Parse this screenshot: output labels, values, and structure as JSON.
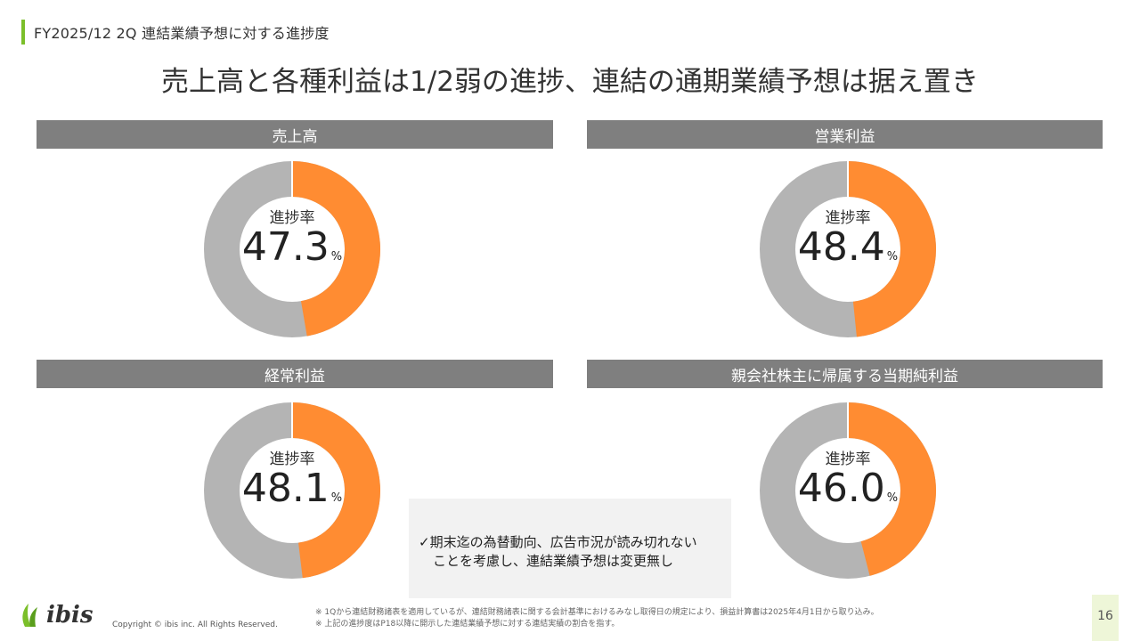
{
  "header": {
    "label": "FY2025/12 2Q 連結業績予想に対する進捗度"
  },
  "title": "売上高と各種利益は1/2弱の進捗、連結の通期業績予想は据え置き",
  "colors": {
    "progress": "#ff8c32",
    "remainder": "#b4b4b4",
    "panel_header": "#7f7f7f",
    "accent": "#7bbf2a"
  },
  "panels": [
    {
      "label": "売上高",
      "caption": "進捗率",
      "value": "47.3",
      "unit": "%",
      "progress": 47.3
    },
    {
      "label": "営業利益",
      "caption": "進捗率",
      "value": "48.4",
      "unit": "%",
      "progress": 48.4
    },
    {
      "label": "経常利益",
      "caption": "進捗率",
      "value": "48.1",
      "unit": "%",
      "progress": 48.1
    },
    {
      "label": "親会社株主に帰属する当期純利益",
      "caption": "進捗率",
      "value": "46.0",
      "unit": "%",
      "progress": 46.0
    }
  ],
  "note": {
    "line1": "✓期末迄の為替動向、広告市況が読み切れない",
    "line2": "ことを考慮し、連結業績予想は変更無し"
  },
  "footnotes": [
    "※ 1Qから連結財務諸表を適用しているが、連結財務諸表に関する会計基準におけるみなし取得日の規定により、損益計算書は2025年4月1日から取り込み。",
    "※ 上記の進捗度はP18以降に開示した連結業績予想に対する連結実績の割合を指す。"
  ],
  "logo": {
    "text": "ibis"
  },
  "copyright": "Copyright © ibis inc. All Rights Reserved.",
  "page_number": "16"
}
